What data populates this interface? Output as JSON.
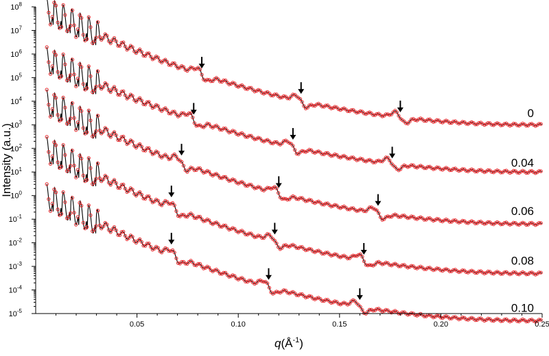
{
  "chart_data": {
    "type": "scatter",
    "title": "",
    "xlabel": "q(Å-1)",
    "xlabel_parts": {
      "symbol": "q",
      "open": "(Å",
      "exponent": "-1",
      "close": ")"
    },
    "ylabel": "Intensity (a.u.)",
    "x_range": [
      0.0,
      0.25
    ],
    "y_scale": "log",
    "y_range_exponent": [
      -5,
      8
    ],
    "x_ticks": [
      {
        "value": 0.05,
        "label": "0.05"
      },
      {
        "value": 0.1,
        "label": "0.10"
      },
      {
        "value": 0.15,
        "label": "0.15"
      },
      {
        "value": 0.2,
        "label": "0.20"
      },
      {
        "value": 0.25,
        "label": "0.25"
      }
    ],
    "y_ticks": [
      {
        "exp": 8,
        "label": "10",
        "sup": "8"
      },
      {
        "exp": 7,
        "label": "10",
        "sup": "7"
      },
      {
        "exp": 6,
        "label": "10",
        "sup": "6"
      },
      {
        "exp": 5,
        "label": "10",
        "sup": "5"
      },
      {
        "exp": 4,
        "label": "10",
        "sup": "4"
      },
      {
        "exp": 3,
        "label": "10",
        "sup": "3"
      },
      {
        "exp": 2,
        "label": "10",
        "sup": "2"
      },
      {
        "exp": 1,
        "label": "10",
        "sup": "1"
      },
      {
        "exp": 0,
        "label": "10",
        "sup": "0"
      },
      {
        "exp": -1,
        "label": "10",
        "sup": "-1"
      },
      {
        "exp": -2,
        "label": "10",
        "sup": "-2"
      },
      {
        "exp": -3,
        "label": "10",
        "sup": "-3"
      },
      {
        "exp": -4,
        "label": "10",
        "sup": "-4"
      },
      {
        "exp": -5,
        "label": "10",
        "sup": "-5"
      }
    ],
    "marker_color": "#e8262a",
    "fit_color": "#000000",
    "series": [
      {
        "name": "0",
        "start_exp": 7.9,
        "end_exp": 3.0,
        "label_exp": 3.5,
        "feature_q": [
          0.082,
          0.131,
          0.18
        ],
        "arrows_q": [
          0.082,
          0.131,
          0.18
        ]
      },
      {
        "name": "0.04",
        "start_exp": 5.8,
        "end_exp": 1.0,
        "label_exp": 1.4,
        "feature_q": [
          0.078,
          0.127,
          0.176
        ],
        "arrows_q": [
          0.078,
          0.127,
          0.176
        ]
      },
      {
        "name": "0.06",
        "start_exp": 4.0,
        "end_exp": -1.2,
        "label_exp": -0.65,
        "feature_q": [
          0.072,
          0.12,
          0.169
        ],
        "arrows_q": [
          0.072,
          0.12,
          0.169
        ]
      },
      {
        "name": "0.08",
        "start_exp": 2.0,
        "end_exp": -3.3,
        "label_exp": -2.75,
        "feature_q": [
          0.069,
          0.118,
          0.162
        ],
        "arrows_q": [
          0.067,
          0.118,
          0.162
        ]
      },
      {
        "name": "0.10",
        "start_exp": 0.0,
        "end_exp": -5.3,
        "label_exp": -4.75,
        "feature_q": [
          0.069,
          0.115,
          0.16
        ],
        "arrows_q": [
          0.067,
          0.115,
          0.16
        ]
      }
    ]
  }
}
